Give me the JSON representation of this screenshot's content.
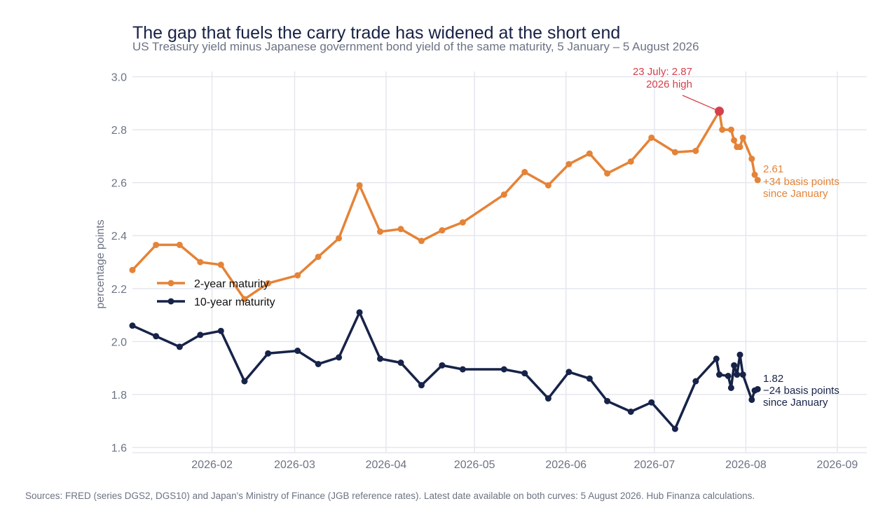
{
  "title": "The gap that fuels the carry trade has widened at the short end",
  "subtitle": "US Treasury yield minus Japanese government bond yield of the same maturity, 5 January – 5 August 2026",
  "source": "Sources: FRED (series DGS2, DGS10) and Japan's Ministry of Finance (JGB reference rates). Latest date available on both curves: 5 August 2026. Hub Finanza calculations.",
  "colors": {
    "two_year": "#e58337",
    "ten_year": "#172348",
    "highlight": "#d6404b",
    "grid": "#e5e7ef",
    "text_muted": "#6b7383"
  },
  "chart_data": {
    "type": "line",
    "ylabel": "percentage points",
    "xlabel": "",
    "ylim": [
      1.58,
      3.02
    ],
    "xlim": [
      "2026-01-05",
      "2026-09-11"
    ],
    "y_ticks": [
      1.6,
      1.8,
      2.0,
      2.2,
      2.4,
      2.6,
      2.8,
      3.0
    ],
    "y_tick_labels": [
      "1.6",
      "1.8",
      "2.0",
      "2.2",
      "2.4",
      "2.6",
      "2.8",
      "3.0"
    ],
    "x_ticks": [
      "2026-02-01",
      "2026-03-01",
      "2026-04-01",
      "2026-05-01",
      "2026-06-01",
      "2026-07-01",
      "2026-08-01",
      "2026-09-01"
    ],
    "x_tick_labels": [
      "2026-02",
      "2026-03",
      "2026-04",
      "2026-05",
      "2026-06",
      "2026-07",
      "2026-08",
      "2026-09"
    ],
    "grid": true,
    "legend_position": "middle-left",
    "series": [
      {
        "name": "2-year maturity",
        "x": [
          "2026-01-05",
          "2026-01-13",
          "2026-01-21",
          "2026-01-28",
          "2026-02-04",
          "2026-02-12",
          "2026-02-20",
          "2026-03-02",
          "2026-03-09",
          "2026-03-16",
          "2026-03-23",
          "2026-03-30",
          "2026-04-06",
          "2026-04-13",
          "2026-04-20",
          "2026-04-27",
          "2026-05-11",
          "2026-05-18",
          "2026-05-26",
          "2026-06-02",
          "2026-06-09",
          "2026-06-15",
          "2026-06-23",
          "2026-06-30",
          "2026-07-08",
          "2026-07-15",
          "2026-07-23",
          "2026-07-24",
          "2026-07-27",
          "2026-07-28",
          "2026-07-29",
          "2026-07-30",
          "2026-07-31",
          "2026-08-03",
          "2026-08-04",
          "2026-08-05"
        ],
        "values": [
          2.27,
          2.365,
          2.365,
          2.3,
          2.29,
          2.16,
          2.22,
          2.25,
          2.32,
          2.39,
          2.59,
          2.415,
          2.425,
          2.38,
          2.42,
          2.45,
          2.555,
          2.64,
          2.59,
          2.67,
          2.71,
          2.635,
          2.68,
          2.77,
          2.715,
          2.72,
          2.87,
          2.8,
          2.8,
          2.76,
          2.735,
          2.735,
          2.77,
          2.69,
          2.63,
          2.61
        ]
      },
      {
        "name": "10-year maturity",
        "x": [
          "2026-01-05",
          "2026-01-13",
          "2026-01-21",
          "2026-01-28",
          "2026-02-04",
          "2026-02-12",
          "2026-02-20",
          "2026-03-02",
          "2026-03-09",
          "2026-03-16",
          "2026-03-23",
          "2026-03-30",
          "2026-04-06",
          "2026-04-13",
          "2026-04-20",
          "2026-04-27",
          "2026-05-11",
          "2026-05-18",
          "2026-05-26",
          "2026-06-02",
          "2026-06-09",
          "2026-06-15",
          "2026-06-23",
          "2026-06-30",
          "2026-07-08",
          "2026-07-15",
          "2026-07-22",
          "2026-07-23",
          "2026-07-26",
          "2026-07-27",
          "2026-07-28",
          "2026-07-29",
          "2026-07-30",
          "2026-07-31",
          "2026-08-03",
          "2026-08-04",
          "2026-08-05"
        ],
        "values": [
          2.06,
          2.02,
          1.98,
          2.025,
          2.04,
          1.85,
          1.955,
          1.965,
          1.915,
          1.94,
          2.11,
          1.935,
          1.92,
          1.835,
          1.91,
          1.895,
          1.895,
          1.88,
          1.785,
          1.885,
          1.86,
          1.775,
          1.735,
          1.77,
          1.67,
          1.85,
          1.935,
          1.875,
          1.87,
          1.825,
          1.91,
          1.875,
          1.95,
          1.875,
          1.78,
          1.815,
          1.82
        ]
      }
    ],
    "annotations": {
      "high": {
        "date": "2026-07-23",
        "value": 2.87,
        "line1": "23 July: 2.87",
        "line2": "2026 high"
      },
      "end_two_year": {
        "date": "2026-08-05",
        "value": 2.61,
        "line1": "2.61",
        "line2": "+34 basis points",
        "line3": "since January"
      },
      "end_ten_year": {
        "date": "2026-08-05",
        "value": 1.82,
        "line1": "1.82",
        "line2": "−24 basis points",
        "line3": "since January"
      }
    }
  }
}
